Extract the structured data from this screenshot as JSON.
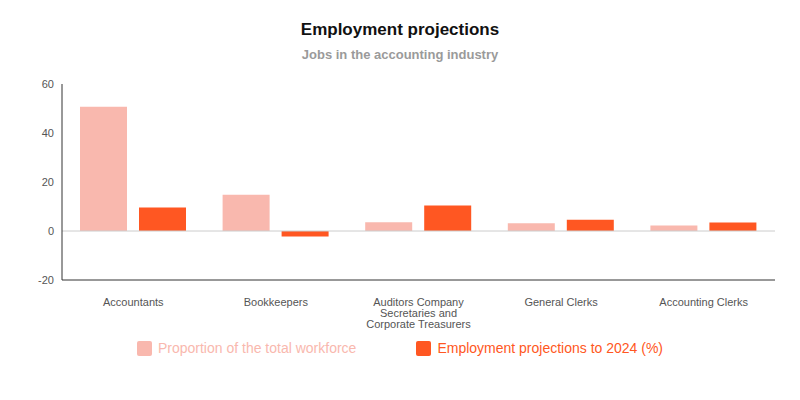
{
  "chart_data": {
    "type": "bar",
    "title": "Employment projections",
    "subtitle": "Jobs in the accounting industry",
    "categories": [
      "Accountants",
      "Bookkeepers",
      "Auditors Company Secretaries and Corporate Treasurers",
      "General Clerks",
      "Accounting Clerks"
    ],
    "series": [
      {
        "name": "Proportion of the total workforce",
        "color": "#f9b8ae",
        "values": [
          50.7,
          14.8,
          3.6,
          3.2,
          2.2
        ]
      },
      {
        "name": "Employment projections to 2024 (%)",
        "color": "#ff5722",
        "values": [
          9.6,
          -2.2,
          10.4,
          4.6,
          3.5
        ]
      }
    ],
    "ylim": [
      -20,
      60
    ],
    "yticks": [
      -20,
      0,
      20,
      40,
      60
    ],
    "grid": false,
    "legend": "bottom"
  }
}
